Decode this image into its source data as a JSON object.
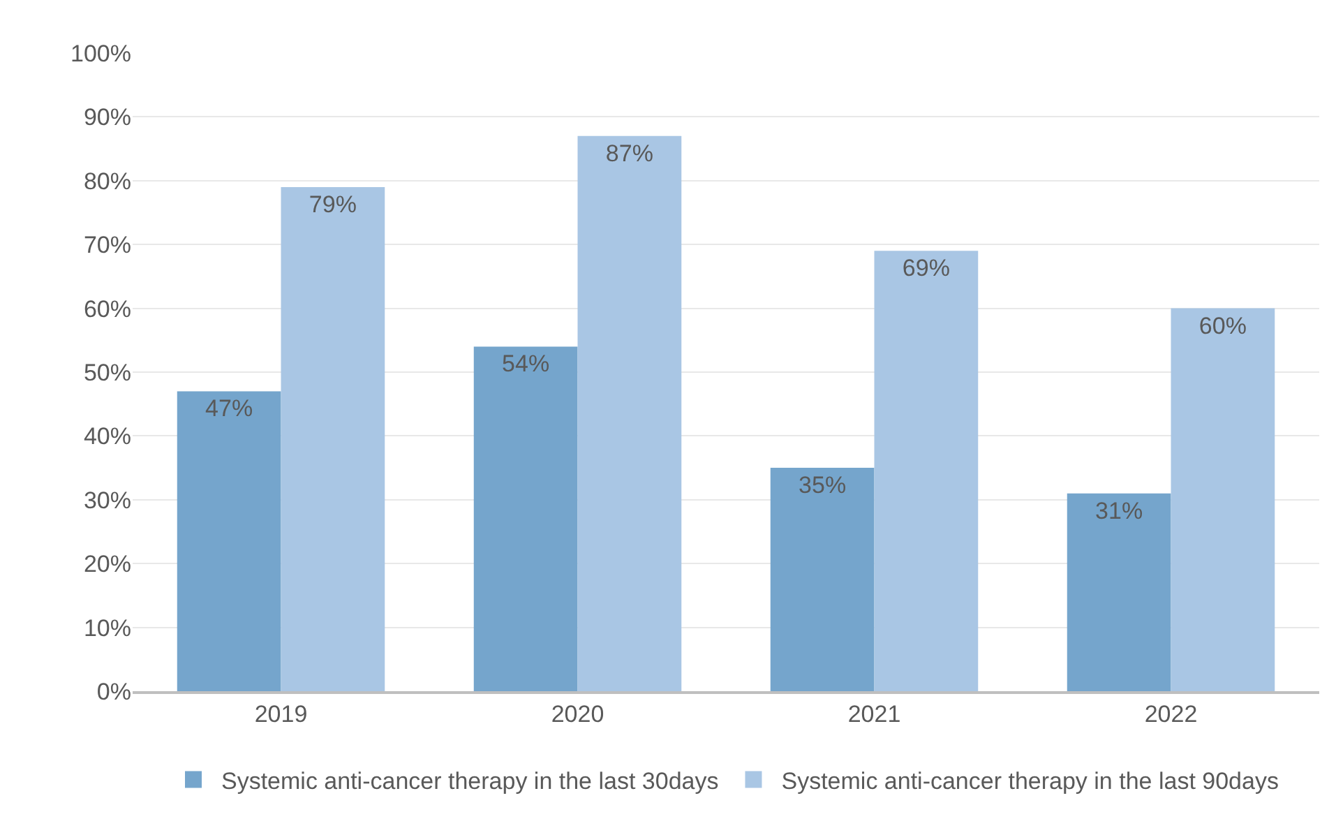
{
  "chart_data": {
    "type": "bar",
    "categories": [
      "2019",
      "2020",
      "2021",
      "2022"
    ],
    "series": [
      {
        "name": "Systemic anti-cancer therapy in the last 30days",
        "color": "#75a5cc",
        "values": [
          47,
          54,
          35,
          31
        ],
        "value_labels": [
          "47%",
          "54%",
          "35%",
          "31%"
        ]
      },
      {
        "name": "Systemic anti-cancer therapy in the last 90days",
        "color": "#a9c6e4",
        "values": [
          79,
          87,
          69,
          60
        ],
        "value_labels": [
          "79%",
          "87%",
          "69%",
          "60%"
        ]
      }
    ],
    "ylim": [
      0,
      100
    ],
    "yticks": [
      {
        "value": 0,
        "label": "0%"
      },
      {
        "value": 10,
        "label": "10%"
      },
      {
        "value": 20,
        "label": "20%"
      },
      {
        "value": 30,
        "label": "30%"
      },
      {
        "value": 40,
        "label": "40%"
      },
      {
        "value": 50,
        "label": "50%"
      },
      {
        "value": 60,
        "label": "60%"
      },
      {
        "value": 70,
        "label": "70%"
      },
      {
        "value": 80,
        "label": "80%"
      },
      {
        "value": 90,
        "label": "90%"
      },
      {
        "value": 100,
        "label": "100%"
      }
    ],
    "grid": "y",
    "legend": "bottom"
  }
}
